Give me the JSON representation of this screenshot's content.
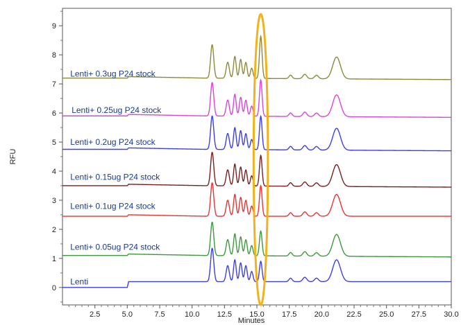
{
  "chart_data": {
    "type": "line",
    "title": "",
    "xlabel": "Minutes",
    "ylabel": "RFU",
    "xlim": [
      0,
      30
    ],
    "ylim": [
      -0.6,
      9.6
    ],
    "x_ticks": [
      2.5,
      5.0,
      7.5,
      10.0,
      12.5,
      15.0,
      17.5,
      20.0,
      22.5,
      25.0,
      27.5,
      30.0
    ],
    "x_tick_labels": [
      "2.5",
      "5.0",
      "7.5",
      "10.0",
      "12.5",
      "15.0",
      "17.5",
      "20.0",
      "22.5",
      "25.0",
      "27.5",
      "30.0"
    ],
    "y_ticks": [
      0,
      1,
      2,
      3,
      4,
      5,
      6,
      7,
      8,
      9
    ],
    "y_tick_labels": [
      "0",
      "1",
      "2",
      "3",
      "4",
      "5",
      "6",
      "7",
      "8",
      "9"
    ],
    "grid": false,
    "highlight": {
      "shape": "ellipse",
      "color": "#f2b21b",
      "x_center": 15.3,
      "y_center": 4.4,
      "x_halfwidth": 0.55,
      "y_halfwidth": 5.0
    },
    "series": [
      {
        "name": "Lenti",
        "label_y": 0.1,
        "color": "#3c3cf0",
        "baseline": [
          0.0,
          0.0,
          0.2,
          0.2,
          0.2
        ],
        "peak_15_3": 0.7
      },
      {
        "name": "Lenti+ 0.05ug P24 stock",
        "label_y": 1.3,
        "color": "#3a9a3a",
        "baseline": [
          1.1,
          1.1,
          1.15,
          1.1,
          1.05
        ],
        "peak_15_3": 0.85
      },
      {
        "name": "Lenti+ 0.1ug P24 stock",
        "label_y": 2.7,
        "color": "#f03030",
        "baseline": [
          2.45,
          2.45,
          2.5,
          2.45,
          2.45
        ],
        "peak_15_3": 1.05
      },
      {
        "name": "Lenti+ 0.15ug P24 stock",
        "label_y": 3.7,
        "color": "#7a1f1f",
        "baseline": [
          3.5,
          3.5,
          3.55,
          3.5,
          3.45
        ],
        "peak_15_3": 1.05
      },
      {
        "name": "Lenti+ 0.2ug P24 stock",
        "label_y": 4.9,
        "color": "#3c3cf0",
        "baseline": [
          4.75,
          4.75,
          4.8,
          4.75,
          4.7
        ],
        "peak_15_3": 1.15
      },
      {
        "name": "Lenti+ 0.25ug P24 stock",
        "label_y": 6.0,
        "color": "#e040e0",
        "baseline": [
          5.9,
          5.9,
          5.95,
          5.9,
          5.85
        ],
        "peak_15_3": 1.25
      },
      {
        "name": "Lenti+ 0.3ug P24 stock",
        "label_y": 7.25,
        "color": "#8a8a3a",
        "baseline": [
          7.2,
          7.2,
          7.25,
          7.2,
          7.15
        ],
        "peak_15_3": 1.45
      }
    ],
    "baseline_x": [
      0,
      5,
      5.1,
      11,
      30
    ],
    "common_peaks": [
      {
        "x": 11.55,
        "height": 1.15,
        "width": 0.12
      },
      {
        "x": 12.75,
        "height": 0.55,
        "width": 0.12
      },
      {
        "x": 13.3,
        "height": 0.75,
        "width": 0.1
      },
      {
        "x": 13.75,
        "height": 0.65,
        "width": 0.1
      },
      {
        "x": 14.15,
        "height": 0.55,
        "width": 0.1
      },
      {
        "x": 14.6,
        "height": 0.35,
        "width": 0.1
      },
      {
        "x": 17.6,
        "height": 0.12,
        "width": 0.12
      },
      {
        "x": 18.7,
        "height": 0.15,
        "width": 0.15
      },
      {
        "x": 19.6,
        "height": 0.12,
        "width": 0.15
      },
      {
        "x": 21.15,
        "height": 0.75,
        "width": 0.3
      }
    ]
  }
}
